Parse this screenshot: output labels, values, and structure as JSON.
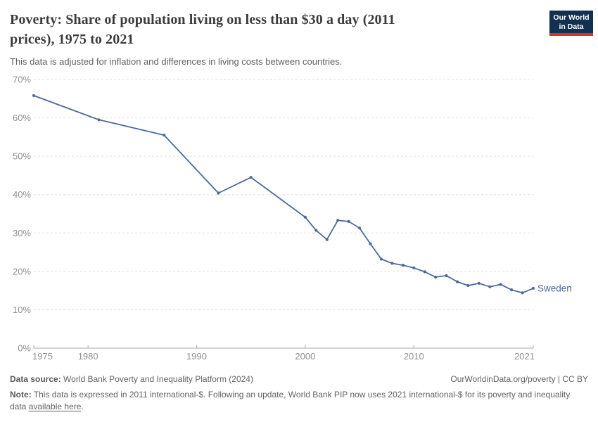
{
  "header": {
    "title": "Poverty: Share of population living on less than $30 a day (2011 prices), 1975 to 2021",
    "title_lines": [
      "Poverty: Share of population living on less than $30 a day (2011",
      "prices), 1975 to 2021"
    ],
    "subtitle": "This data is adjusted for inflation and differences in living costs between countries.",
    "logo": {
      "line1": "Our World",
      "line2": "in Data",
      "bg_color": "#12304f",
      "accent_color": "#d0352c"
    }
  },
  "chart_data": {
    "type": "line",
    "title": "Poverty: Share of population living on less than $30 a day (2011 prices), 1975 to 2021",
    "xlabel": "",
    "ylabel": "",
    "xlim": [
      1975,
      2021
    ],
    "ylim": [
      0,
      70
    ],
    "x_ticks": [
      1975,
      1980,
      1990,
      2000,
      2010,
      2021
    ],
    "y_ticks": [
      0,
      10,
      20,
      30,
      40,
      50,
      60,
      70
    ],
    "y_tick_suffix": "%",
    "grid": "horizontal-dashed",
    "legend_position": "end-of-line-label",
    "series": [
      {
        "name": "Sweden",
        "color": "#4c6a9c",
        "x": [
          1975,
          1981,
          1987,
          1992,
          1995,
          2000,
          2001,
          2002,
          2003,
          2004,
          2005,
          2006,
          2007,
          2008,
          2009,
          2010,
          2011,
          2012,
          2013,
          2014,
          2015,
          2016,
          2017,
          2018,
          2019,
          2020,
          2021
        ],
        "values": [
          65.8,
          59.5,
          55.5,
          40.4,
          44.5,
          34.1,
          30.7,
          28.3,
          33.3,
          33.0,
          31.3,
          27.2,
          23.2,
          22.1,
          21.6,
          20.9,
          19.9,
          18.5,
          18.9,
          17.3,
          16.3,
          16.9,
          16.0,
          16.6,
          15.2,
          14.4,
          15.6
        ]
      }
    ]
  },
  "footer": {
    "source_label": "Data source:",
    "source_text": "World Bank Poverty and Inequality Platform (2024)",
    "credit": "OurWorldinData.org/poverty | CC BY",
    "note_label": "Note:",
    "note_text": "This data is expressed in 2011 international-$. Following an update, World Bank PIP now uses 2021 international-$ for its poverty and inequality data",
    "note_link": "available here",
    "note_suffix": "."
  },
  "colors": {
    "line": "#4c6a9c",
    "grid": "#e0e0e0",
    "axis": "#a8a8a8",
    "tick_label": "#909090",
    "title": "#3c3c3c",
    "logo_bg": "#12304f",
    "logo_accent": "#d0352c"
  }
}
